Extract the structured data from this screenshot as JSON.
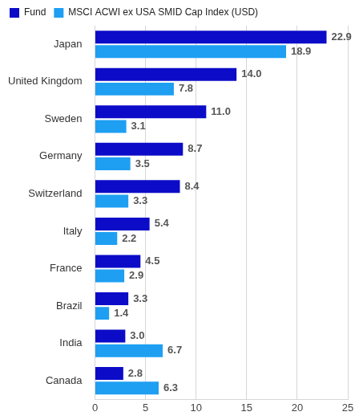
{
  "chart_data": {
    "type": "bar",
    "orientation": "horizontal",
    "categories": [
      "Japan",
      "United Kingdom",
      "Sweden",
      "Germany",
      "Switzerland",
      "Italy",
      "France",
      "Brazil",
      "India",
      "Canada"
    ],
    "series": [
      {
        "name": "Fund",
        "color": "#0c0cc8",
        "values": [
          22.9,
          14.0,
          11.0,
          8.7,
          8.4,
          5.4,
          4.5,
          3.3,
          3.0,
          2.8
        ],
        "value_labels": [
          "22.9",
          "14.0",
          "11.0",
          "8.7",
          "8.4",
          "5.4",
          "4.5",
          "3.3",
          "3.0",
          "2.8"
        ]
      },
      {
        "name": "MSCI ACWI ex USA SMID Cap Index (USD)",
        "color": "#1e9ff2",
        "values": [
          18.9,
          7.8,
          3.1,
          3.5,
          3.3,
          2.2,
          2.9,
          1.4,
          6.7,
          6.3
        ],
        "value_labels": [
          "18.9",
          "7.8",
          "3.1",
          "3.5",
          "3.3",
          "2.2",
          "2.9",
          "1.4",
          "6.7",
          "6.3"
        ]
      }
    ],
    "xlim": [
      0,
      25
    ],
    "xticks": [
      0,
      5,
      10,
      15,
      20,
      25
    ],
    "grid": true,
    "legend": "top",
    "data_labels": true
  }
}
